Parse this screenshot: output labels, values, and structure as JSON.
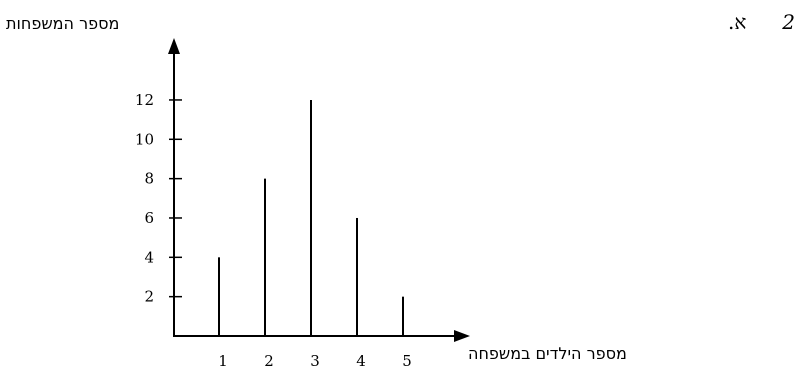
{
  "question": {
    "number": "2",
    "part": "א."
  },
  "chart_data": {
    "type": "bar",
    "xlabel": "מספר הילדים במשפחה",
    "ylabel": "מספר המשפחות",
    "categories": [
      "1",
      "2",
      "3",
      "4",
      "5"
    ],
    "values": [
      4,
      8,
      12,
      6,
      2
    ],
    "yticks": [
      2,
      4,
      6,
      8,
      10,
      12
    ],
    "ylim": [
      0,
      14
    ],
    "grid": false
  }
}
